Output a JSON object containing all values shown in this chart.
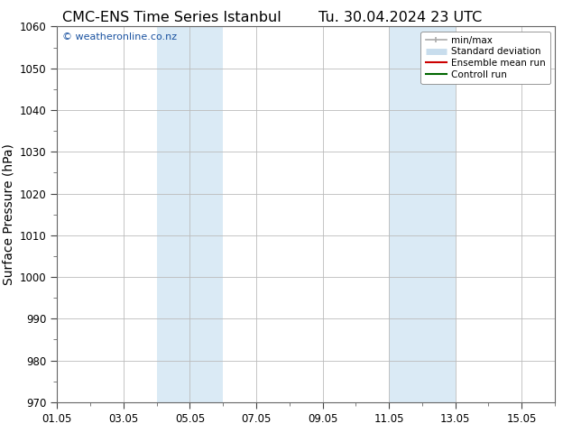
{
  "title_left": "CMC-ENS Time Series Istanbul",
  "title_right": "Tu. 30.04.2024 23 UTC",
  "ylabel": "Surface Pressure (hPa)",
  "ylim": [
    970,
    1060
  ],
  "yticks": [
    970,
    980,
    990,
    1000,
    1010,
    1020,
    1030,
    1040,
    1050,
    1060
  ],
  "xlim": [
    0,
    15
  ],
  "xtick_labels": [
    "01.05",
    "03.05",
    "05.05",
    "07.05",
    "09.05",
    "11.05",
    "13.05",
    "15.05"
  ],
  "xtick_positions": [
    0,
    2,
    4,
    6,
    8,
    10,
    12,
    14
  ],
  "shaded_bands": [
    {
      "x_start": 3.0,
      "x_end": 5.0,
      "color": "#daeaf5"
    },
    {
      "x_start": 10.0,
      "x_end": 12.0,
      "color": "#daeaf5"
    }
  ],
  "watermark_text": "© weatheronline.co.nz",
  "watermark_color": "#1a52a0",
  "legend_entries": [
    {
      "label": "min/max",
      "color": "#aaaaaa",
      "lw": 1.2
    },
    {
      "label": "Standard deviation",
      "color": "#c8dded",
      "lw": 5
    },
    {
      "label": "Ensemble mean run",
      "color": "#cc0000",
      "lw": 1.5
    },
    {
      "label": "Controll run",
      "color": "#006600",
      "lw": 1.5
    }
  ],
  "background_color": "#ffffff",
  "grid_color": "#bbbbbb",
  "title_fontsize": 11.5,
  "ylabel_fontsize": 10,
  "tick_fontsize": 8.5,
  "watermark_fontsize": 8,
  "legend_fontsize": 7.5
}
